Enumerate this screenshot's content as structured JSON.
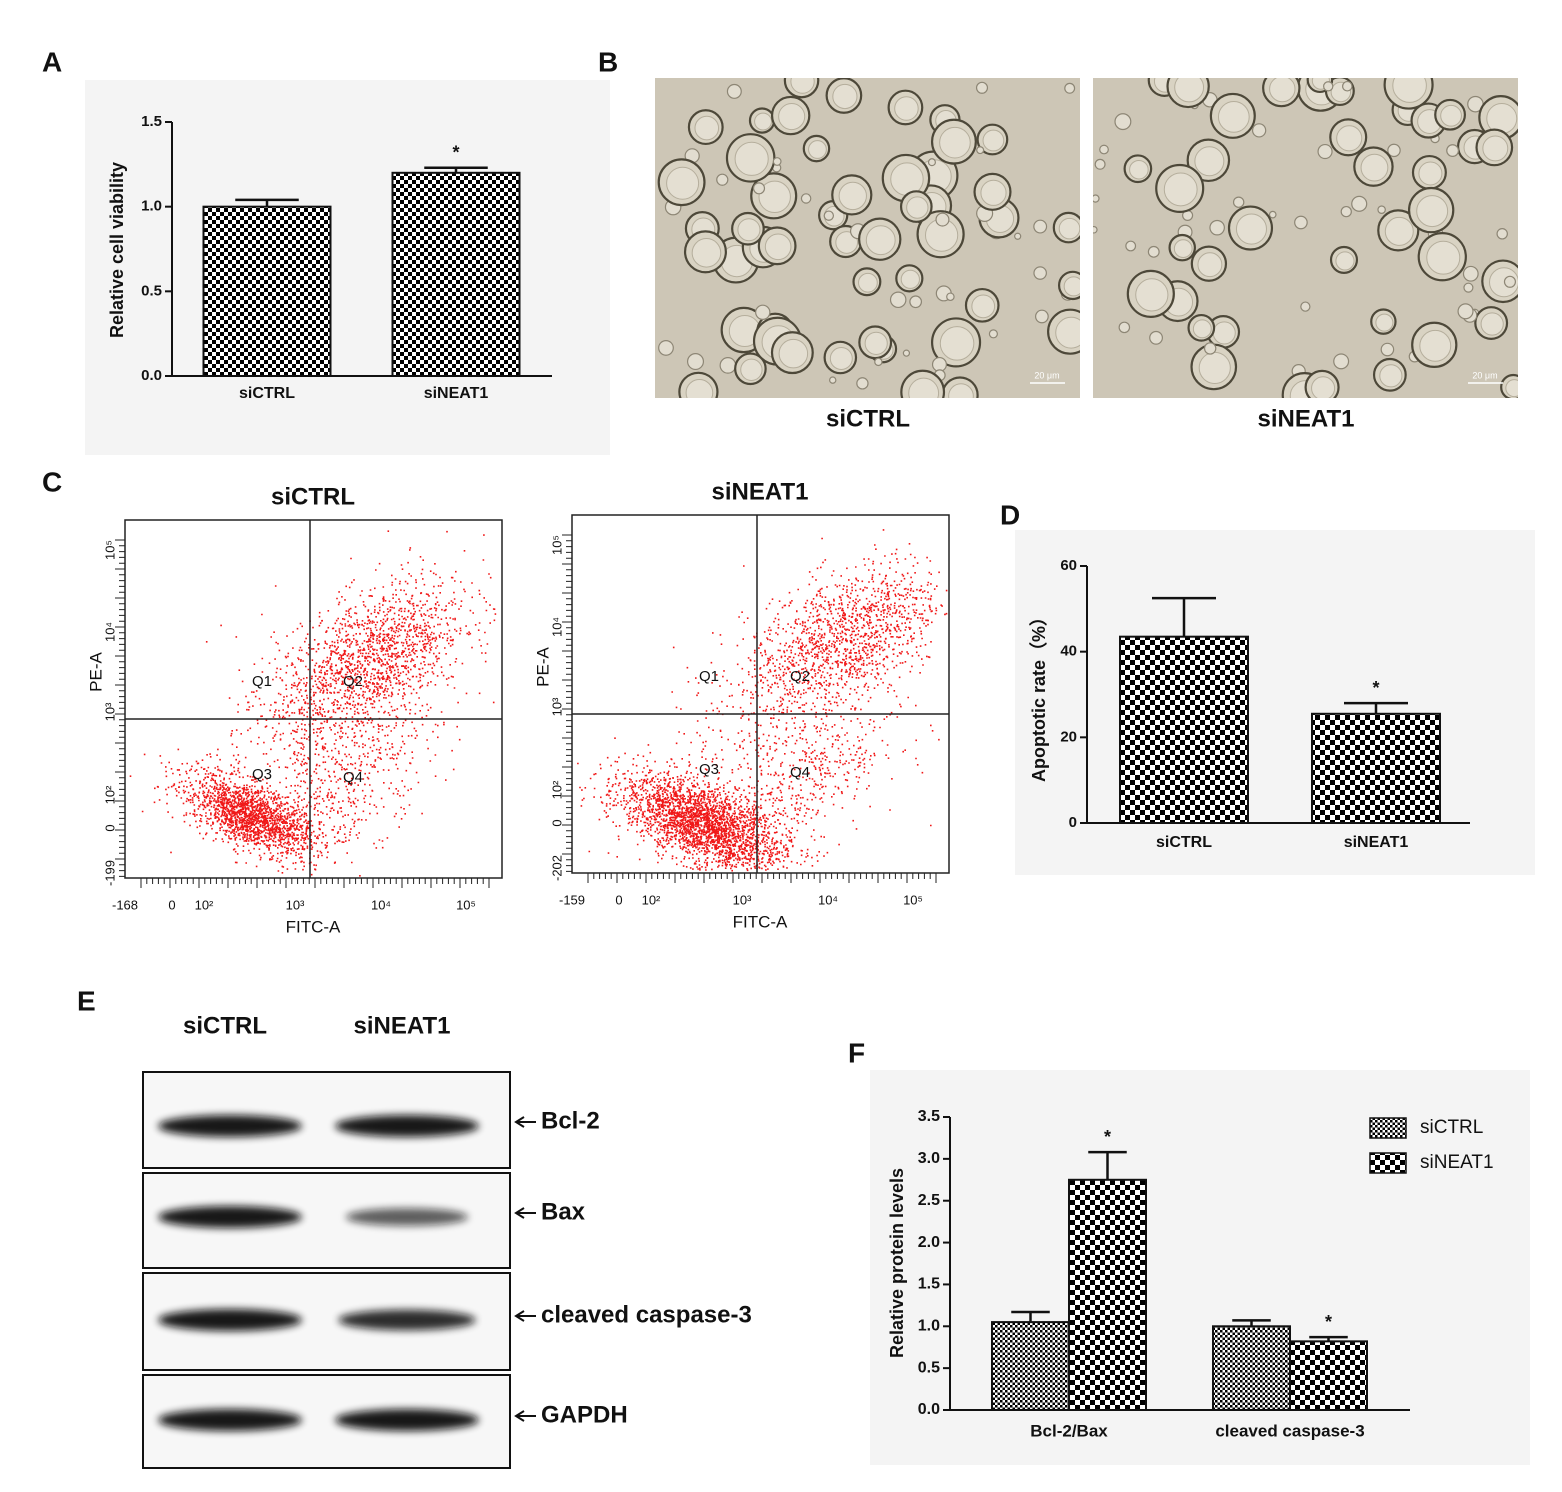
{
  "panel_labels": [
    "A",
    "B",
    "C",
    "D",
    "E",
    "F"
  ],
  "chart_data": [
    {
      "type": "bar",
      "y_label": "Relative cell viability",
      "categories": [
        "siCTRL",
        "siNEAT1"
      ],
      "series": [
        {
          "color": "#000000",
          "values": [
            1.0,
            1.2
          ],
          "errors": [
            0.04,
            0.03
          ],
          "annotations": [
            null,
            "*"
          ]
        }
      ],
      "ylim": [
        0,
        1.5
      ],
      "yticks": [
        {
          "value": 0,
          "label": "0.0"
        },
        0.5,
        {
          "value": 1,
          "label": "1.0"
        },
        1.5
      ]
    },
    {
      "type": "bar",
      "y_label": "Apoptotic rate（%）",
      "categories": [
        "siCTRL",
        "siNEAT1"
      ],
      "series": [
        {
          "color": "#000000",
          "values": [
            43.5,
            25.5
          ],
          "errors": [
            9,
            2.5
          ],
          "annotations": [
            null,
            "*"
          ]
        }
      ],
      "ylim": [
        0,
        60
      ],
      "yticks": [
        0,
        20,
        40,
        60
      ]
    },
    {
      "type": "bar",
      "y_label": "Relative protein levels",
      "categories": [
        "Bcl-2/Bax",
        "cleaved caspase-3"
      ],
      "series": [
        {
          "name": "siCTRL",
          "color": "#000000",
          "values": [
            1.05,
            1.0
          ],
          "errors": [
            0.12,
            0.07
          ],
          "annotations": [
            null,
            null
          ]
        },
        {
          "name": "siNEAT1",
          "color": "#000000",
          "values": [
            2.75,
            0.82
          ],
          "errors": [
            0.33,
            0.05
          ],
          "annotations": [
            "*",
            "*"
          ]
        }
      ],
      "ylim": [
        0,
        3.5
      ],
      "yticks": [
        {
          "value": 0,
          "label": "0.0"
        },
        0.5,
        {
          "value": 1,
          "label": "1.0"
        },
        1.5,
        {
          "value": 2,
          "label": "2.0"
        },
        2.5,
        {
          "value": 3,
          "label": "3.0"
        },
        3.5
      ],
      "legend": "upper right"
    }
  ],
  "micrographs": [
    {
      "caption": "siCTRL",
      "scale_bar": "20 μm"
    },
    {
      "caption": "siNEAT1",
      "scale_bar": "20 μm"
    }
  ],
  "flow_plots": [
    {
      "title": "siCTRL",
      "x_label": "FITC-A",
      "y_label": "PE-A",
      "quadrants": [
        "Q1",
        "Q2",
        "Q3",
        "Q4"
      ],
      "x_ticks": [
        "-168",
        "0",
        "10²",
        "10³",
        "10⁴",
        "10⁵"
      ],
      "y_ticks": [
        "-199",
        "0",
        "10²",
        "10³",
        "10⁴",
        "10⁵"
      ]
    },
    {
      "title": "siNEAT1",
      "x_label": "FITC-A",
      "y_label": "PE-A",
      "quadrants": [
        "Q1",
        "Q2",
        "Q3",
        "Q4"
      ],
      "x_ticks": [
        "-159",
        "0",
        "10²",
        "10³",
        "10⁴",
        "10⁵"
      ],
      "y_ticks": [
        "-202",
        "0",
        "10²",
        "10³",
        "10⁴",
        "10⁵"
      ]
    }
  ],
  "western_blot": {
    "lanes": [
      "siCTRL",
      "siNEAT1"
    ],
    "bands": [
      "Bcl-2",
      "Bax",
      "cleaved caspase-3",
      "GAPDH"
    ]
  }
}
